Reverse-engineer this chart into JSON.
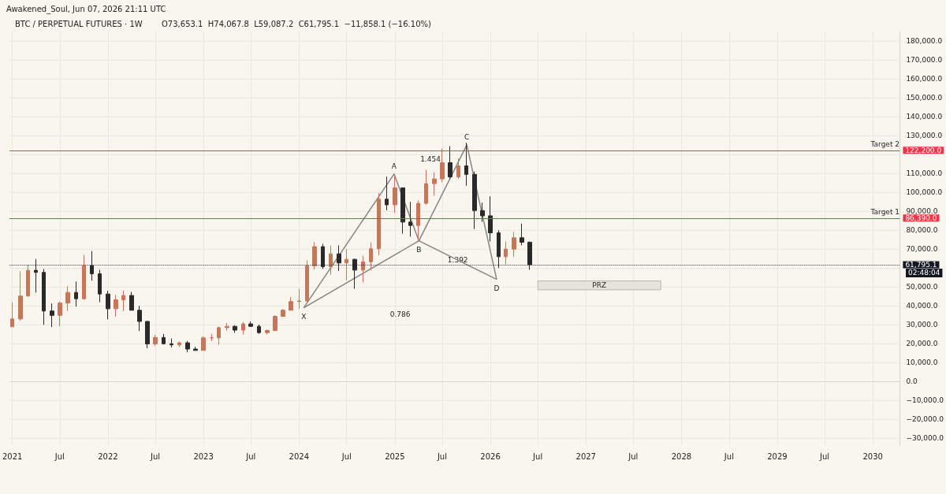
{
  "chart_data": {
    "type": "candlestick",
    "title": "BTC / PERPETUAL FUTURES · 1W",
    "subtitle": "O73,653.1  H74,067.8  L59,087.2  C61,795.1  −11,858.1 (−16.10%)",
    "series": [
      {
        "x": [
          "2021-01",
          "2021-02",
          "2021-03",
          "2021-04",
          "2021-05",
          "2021-06",
          "2021-07",
          "2021-08",
          "2021-09",
          "2021-10",
          "2021-11",
          "2021-12",
          "2022-01",
          "2022-02",
          "2022-03",
          "2022-04",
          "2022-05",
          "2022-06",
          "2022-07",
          "2022-08",
          "2022-09",
          "2022-10",
          "2022-11",
          "2022-12",
          "2023-01",
          "2023-02",
          "2023-03",
          "2023-04",
          "2023-05",
          "2023-06",
          "2023-07",
          "2023-08",
          "2023-09",
          "2023-10",
          "2023-11",
          "2023-12",
          "2024-01",
          "2024-02",
          "2024-03",
          "2024-04",
          "2024-05",
          "2024-06",
          "2024-07",
          "2024-08",
          "2024-09",
          "2024-10",
          "2024-11",
          "2024-12",
          "2025-01",
          "2025-02",
          "2025-03",
          "2025-04",
          "2025-05",
          "2025-06",
          "2025-07",
          "2025-08",
          "2025-09",
          "2025-10",
          "2025-11",
          "2025-12",
          "2026-01",
          "2026-02",
          "2026-03",
          "2026-04",
          "2026-05",
          "2026-06"
        ],
        "ohlc": [
          [
            29000,
            41900,
            28800,
            33100
          ],
          [
            33100,
            58300,
            32300,
            45200
          ],
          [
            45200,
            61800,
            45000,
            58800
          ],
          [
            58800,
            64800,
            47000,
            57700
          ],
          [
            57700,
            59500,
            30000,
            37300
          ],
          [
            37300,
            41300,
            28800,
            35000
          ],
          [
            35000,
            42400,
            29300,
            41500
          ],
          [
            41500,
            50500,
            37300,
            47100
          ],
          [
            47100,
            52900,
            39600,
            43800
          ],
          [
            43800,
            67000,
            43300,
            61300
          ],
          [
            61300,
            69000,
            53300,
            57000
          ],
          [
            57000,
            59100,
            42000,
            46300
          ],
          [
            46300,
            48000,
            32900,
            38500
          ],
          [
            38500,
            45800,
            34300,
            43200
          ],
          [
            43200,
            48200,
            37200,
            45500
          ],
          [
            45500,
            47400,
            37600,
            37700
          ],
          [
            37700,
            40000,
            26700,
            31800
          ],
          [
            31800,
            31900,
            17600,
            19900
          ],
          [
            19900,
            24700,
            18800,
            23300
          ],
          [
            23300,
            25200,
            19600,
            20000
          ],
          [
            20000,
            22800,
            18100,
            19400
          ],
          [
            19400,
            21100,
            18200,
            20500
          ],
          [
            20500,
            21500,
            15500,
            17200
          ],
          [
            17200,
            18400,
            16300,
            16500
          ],
          [
            16500,
            23900,
            16500,
            23100
          ],
          [
            23100,
            25300,
            21400,
            23150
          ],
          [
            23150,
            29200,
            19500,
            28500
          ],
          [
            28500,
            31000,
            26900,
            29200
          ],
          [
            29200,
            29800,
            25800,
            27200
          ],
          [
            27200,
            31400,
            24800,
            30500
          ],
          [
            30500,
            31800,
            28900,
            29200
          ],
          [
            29200,
            30200,
            25200,
            25900
          ],
          [
            25900,
            27500,
            24900,
            27000
          ],
          [
            27000,
            35000,
            26600,
            34500
          ],
          [
            34500,
            38400,
            34100,
            37700
          ],
          [
            37700,
            44700,
            37600,
            42300
          ],
          [
            42300,
            48900,
            38500,
            42600
          ],
          [
            42600,
            64000,
            41900,
            61200
          ],
          [
            61200,
            73800,
            59200,
            71300
          ],
          [
            71300,
            72800,
            59600,
            60700
          ],
          [
            60700,
            71900,
            56500,
            67500
          ],
          [
            67500,
            72000,
            58400,
            62700
          ],
          [
            62700,
            70000,
            53500,
            64600
          ],
          [
            64600,
            65000,
            49000,
            58900
          ],
          [
            58900,
            66500,
            52600,
            63300
          ],
          [
            63300,
            73600,
            58900,
            70200
          ],
          [
            70200,
            99600,
            66800,
            96400
          ],
          [
            96400,
            108300,
            90500,
            93400
          ],
          [
            93400,
            109600,
            89200,
            102400
          ],
          [
            102400,
            102500,
            78200,
            84300
          ],
          [
            84300,
            95000,
            76600,
            82500
          ],
          [
            82500,
            95700,
            74500,
            94200
          ],
          [
            94200,
            111900,
            93400,
            104600
          ],
          [
            104600,
            110500,
            98200,
            107100
          ],
          [
            107100,
            123200,
            105300,
            115700
          ],
          [
            115700,
            124400,
            107300,
            108200
          ],
          [
            108200,
            117900,
            107200,
            114000
          ],
          [
            114000,
            126200,
            103500,
            109500
          ],
          [
            109500,
            111000,
            80600,
            90400
          ],
          [
            90400,
            94600,
            84400,
            87600
          ],
          [
            87600,
            97900,
            74000,
            78600
          ],
          [
            78600,
            80000,
            60000,
            66000
          ],
          [
            66000,
            74000,
            62000,
            70000
          ],
          [
            70000,
            79000,
            66000,
            76000
          ],
          [
            76000,
            83500,
            72000,
            73653.1
          ],
          [
            73653.1,
            74067.8,
            59087.2,
            61795.1
          ]
        ],
        "colors": [
          "#c8765a",
          "#c8765a",
          "#c8765a",
          "#2a2a2a",
          "#2a2a2a",
          "#2a2a2a",
          "#c8765a",
          "#c8765a",
          "#2a2a2a",
          "#c8765a",
          "#2a2a2a",
          "#2a2a2a",
          "#2a2a2a",
          "#c8765a",
          "#c8765a",
          "#2a2a2a",
          "#2a2a2a",
          "#2a2a2a",
          "#c8765a",
          "#2a2a2a",
          "#2a2a2a",
          "#c8765a",
          "#2a2a2a",
          "#2a2a2a",
          "#c8765a",
          "#c8765a",
          "#c8765a",
          "#c8765a",
          "#2a2a2a",
          "#c8765a",
          "#2a2a2a",
          "#2a2a2a",
          "#c8765a",
          "#c8765a",
          "#c8765a",
          "#c8765a",
          "#c8765a",
          "#c8765a",
          "#c8765a",
          "#2a2a2a",
          "#c8765a",
          "#2a2a2a",
          "#c8765a",
          "#2a2a2a",
          "#c8765a",
          "#c8765a",
          "#c8765a",
          "#2a2a2a",
          "#c8765a",
          "#2a2a2a",
          "#2a2a2a",
          "#c8765a",
          "#c8765a",
          "#c8765a",
          "#c8765a",
          "#2a2a2a",
          "#c8765a",
          "#2a2a2a",
          "#2a2a2a",
          "#2a2a2a",
          "#2a2a2a",
          "#2a2a2a",
          "#c8765a",
          "#c8765a",
          "#2a2a2a",
          "#2a2a2a"
        ]
      },
      {
        "type": "line",
        "color": "#86857f",
        "x": [
          "2024-01-19",
          "2024-12-29",
          "2025-04-03",
          "2025-10-03",
          "2026-01-25"
        ],
        "values": [
          39000,
          109700,
          74400,
          125100,
          54000
        ]
      },
      {
        "type": "line",
        "color": "#86857f",
        "x": [
          "2024-01-19",
          "2025-04-03",
          "2026-01-25"
        ],
        "values": [
          39000,
          74400,
          54000
        ]
      }
    ],
    "xlim": [
      "2020-12-21",
      "2030-04-14"
    ],
    "xticks": [
      {
        "value": "2021-01-01",
        "label": "2021"
      },
      {
        "value": "2021-07-01",
        "label": "Jul"
      },
      {
        "value": "2022-01-01",
        "label": "2022"
      },
      {
        "value": "2022-07-01",
        "label": "Jul"
      },
      {
        "value": "2023-01-01",
        "label": "2023"
      },
      {
        "value": "2023-07-01",
        "label": "Jul"
      },
      {
        "value": "2024-01-01",
        "label": "2024"
      },
      {
        "value": "2024-07-01",
        "label": "Jul"
      },
      {
        "value": "2025-01-01",
        "label": "2025"
      },
      {
        "value": "2025-07-01",
        "label": "Jul"
      },
      {
        "value": "2026-01-01",
        "label": "2026"
      },
      {
        "value": "2026-07-01",
        "label": "Jul"
      },
      {
        "value": "2027-01-01",
        "label": "2027"
      },
      {
        "value": "2027-07-01",
        "label": "Jul"
      },
      {
        "value": "2028-01-01",
        "label": "2028"
      },
      {
        "value": "2028-07-01",
        "label": "Jul"
      },
      {
        "value": "2029-01-01",
        "label": "2029"
      },
      {
        "value": "2029-07-01",
        "label": "Jul"
      },
      {
        "value": "2030-01-01",
        "label": "2030"
      }
    ],
    "ylim": [
      -34000,
      185000
    ],
    "yticks": [
      {
        "value": -30000,
        "label": "−30,000.0"
      },
      {
        "value": -20000,
        "label": "−20,000.0"
      },
      {
        "value": -10000,
        "label": "−10,000.0"
      },
      {
        "value": 0,
        "label": "0.0"
      },
      {
        "value": 10000,
        "label": "10,000.0"
      },
      {
        "value": 20000,
        "label": "20,000.0"
      },
      {
        "value": 30000,
        "label": "30,000.0"
      },
      {
        "value": 40000,
        "label": "40,000.0"
      },
      {
        "value": 50000,
        "label": "50,000.0"
      },
      {
        "value": 60000,
        "label": null
      },
      {
        "value": 70000,
        "label": "70,000.0"
      },
      {
        "value": 80000,
        "label": "80,000.0"
      },
      {
        "value": 90000,
        "label": "90,000.0"
      },
      {
        "value": 100000,
        "label": "100,000.0"
      },
      {
        "value": 110000,
        "label": "110,000.0"
      },
      {
        "value": 120000,
        "label": null
      },
      {
        "value": 130000,
        "label": "130,000.0"
      },
      {
        "value": 140000,
        "label": "140,000.0"
      },
      {
        "value": 150000,
        "label": "150,000.0"
      },
      {
        "value": 160000,
        "label": "160,000.0"
      },
      {
        "value": 170000,
        "label": "170,000.0"
      },
      {
        "value": 180000,
        "label": "180,000.0"
      }
    ],
    "grid": true,
    "ref_lines": [
      {
        "axis": "y",
        "value": 122200,
        "label": "122,200.0",
        "color": "#f23645"
      },
      {
        "axis": "y",
        "value": 86390,
        "label": "86,390.0",
        "color": "#f23645"
      },
      {
        "axis": "y",
        "value": 61795.1,
        "label": "61,795.1",
        "color": "#131722",
        "line_style": "dotted"
      }
    ],
    "bands": [
      {
        "axis": "y",
        "from": 48500,
        "to": 53200,
        "label": "PRZ",
        "color": "#e6e3dc"
      }
    ],
    "annotations": [
      "Awakened_Soul, Jun 07, 2026 21:11 UTC",
      "1.454",
      "1.392",
      "0.786",
      {
        "text": "X",
        "x": "2024-01-19",
        "y": 39000
      },
      {
        "text": "A",
        "x": "2024-12-29",
        "y": 109700
      },
      {
        "text": "B",
        "x": "2025-04-03",
        "y": 74400
      },
      {
        "text": "C",
        "x": "2025-10-03",
        "y": 125100
      },
      {
        "text": "D",
        "x": "2026-01-25",
        "y": 54000
      },
      {
        "text": "Target 2",
        "x": "2030-04-14",
        "y": 122200
      },
      {
        "text": "Target 1",
        "x": "2030-04-14",
        "y": 86390
      },
      {
        "text": "02:48:04",
        "x": "2030-04-14",
        "y": 61795.1
      }
    ]
  }
}
